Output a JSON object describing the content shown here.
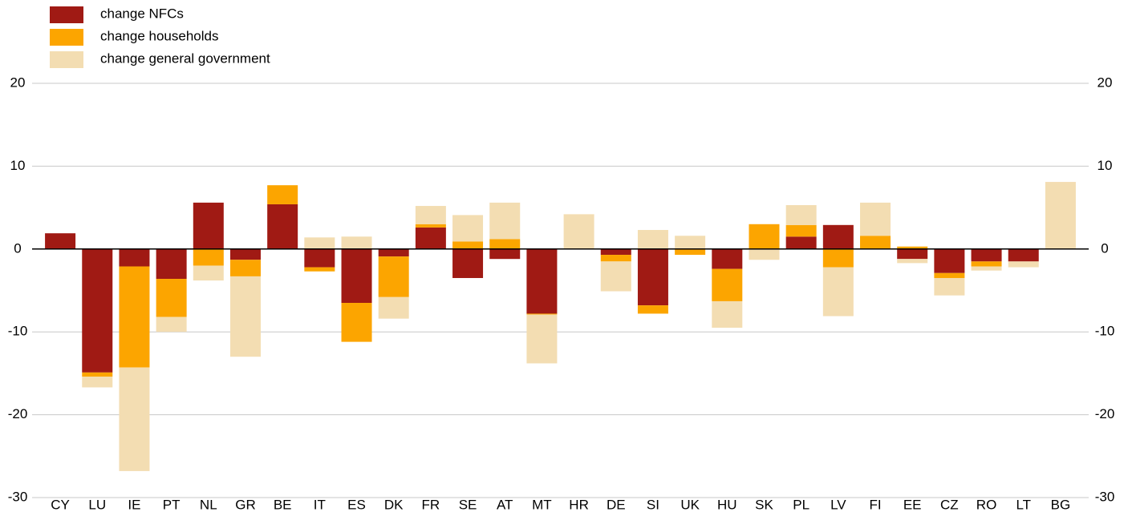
{
  "chart_data": {
    "type": "bar",
    "stacked": true,
    "categories": [
      "CY",
      "LU",
      "IE",
      "PT",
      "NL",
      "GR",
      "BE",
      "IT",
      "ES",
      "DK",
      "FR",
      "SE",
      "AT",
      "MT",
      "HR",
      "DE",
      "SI",
      "UK",
      "HU",
      "SK",
      "PL",
      "LV",
      "FI",
      "EE",
      "CZ",
      "RO",
      "LT",
      "BG"
    ],
    "series": [
      {
        "name": "change NFCs",
        "color": "#a01a14",
        "values": [
          1.9,
          -14.9,
          -2.1,
          -3.6,
          5.6,
          -1.3,
          5.4,
          -2.2,
          -6.5,
          -0.9,
          2.6,
          -3.5,
          -1.2,
          -7.8,
          0,
          -0.7,
          -6.8,
          0,
          -2.4,
          0,
          1.5,
          2.9,
          0,
          -1.2,
          -2.9,
          -1.5,
          -1.5,
          0
        ]
      },
      {
        "name": "change households",
        "color": "#fca500",
        "values": [
          0,
          -0.5,
          -12.2,
          -4.6,
          -2.0,
          -2.0,
          2.3,
          -0.5,
          -4.7,
          -4.9,
          0.4,
          0.9,
          1.2,
          -0.1,
          0,
          -0.8,
          -1.0,
          -0.7,
          -3.9,
          3.0,
          1.4,
          -2.2,
          1.6,
          0.3,
          -0.6,
          -0.6,
          0,
          0
        ]
      },
      {
        "name": "change general government",
        "color": "#f3ddb2",
        "values": [
          0,
          -1.3,
          -12.5,
          -1.8,
          -1.8,
          -9.7,
          0,
          1.4,
          1.5,
          -2.6,
          2.2,
          3.2,
          4.4,
          -5.9,
          4.2,
          -3.6,
          2.3,
          1.6,
          -3.2,
          -1.3,
          2.4,
          -5.9,
          4.0,
          -0.5,
          -2.1,
          -0.5,
          -0.7,
          8.1
        ]
      }
    ],
    "ylim": [
      -30,
      20
    ],
    "yticks": [
      -30,
      -20,
      -10,
      0,
      10,
      20
    ],
    "grid": true,
    "legend": "top-left"
  }
}
